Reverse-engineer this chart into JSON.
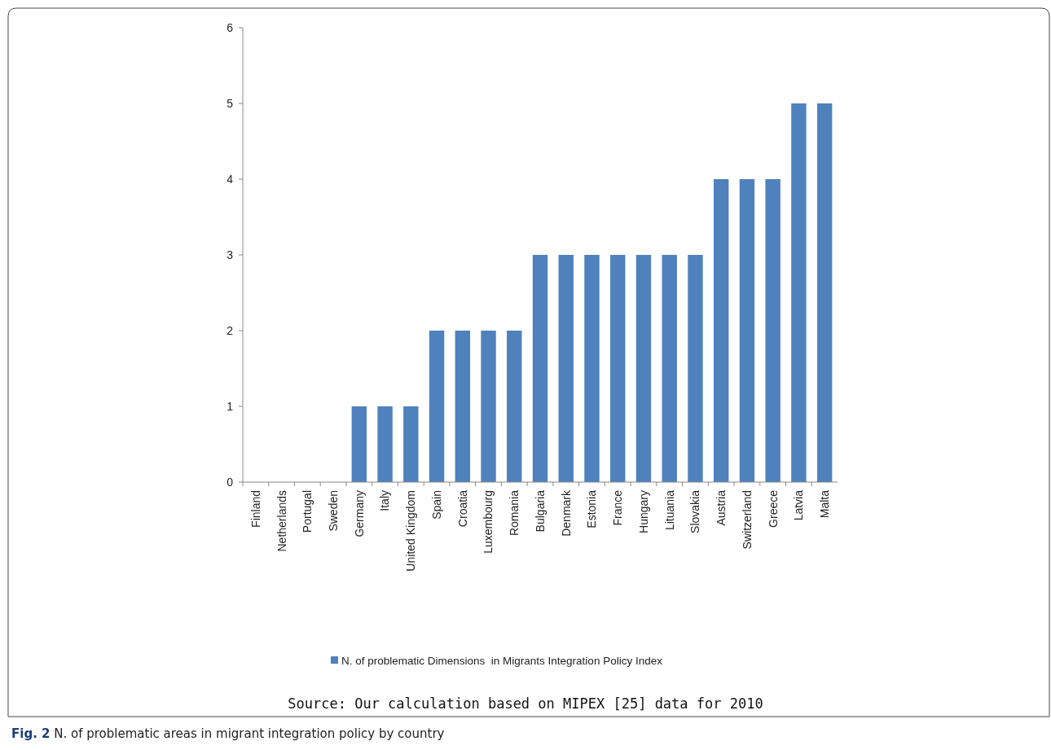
{
  "chart_data": {
    "type": "bar",
    "categories": [
      "Finland",
      "Netherlands",
      "Portugal",
      "Sweden",
      "Germany",
      "Italy",
      "United Kingdom",
      "Spain",
      "Croatia",
      "Luxembourg",
      "Romania",
      "Bulgaria",
      "Denmark",
      "Estonia",
      "France",
      "Hungary",
      "Lituania",
      "Slovakia",
      "Austria",
      "Switzerland",
      "Greece",
      "Latvia",
      "Malta"
    ],
    "series": [
      {
        "name": "N. of problematic Dimensions  in Migrants Integration Policy Index",
        "color": "#4f81bd",
        "values": [
          0,
          0,
          0,
          0,
          1,
          1,
          1,
          2,
          2,
          2,
          2,
          3,
          3,
          3,
          3,
          3,
          3,
          3,
          4,
          4,
          4,
          5,
          5
        ]
      }
    ],
    "ylim": [
      0,
      6
    ],
    "yticks": [
      0,
      1,
      2,
      3,
      4,
      5,
      6
    ],
    "grid": false,
    "legend": "bottom",
    "annotations": [
      "Source: Our calculation based on MIPEX [25] data for 2010",
      "Fig. 2 N. of problematic areas in migrant integration policy by country"
    ]
  }
}
